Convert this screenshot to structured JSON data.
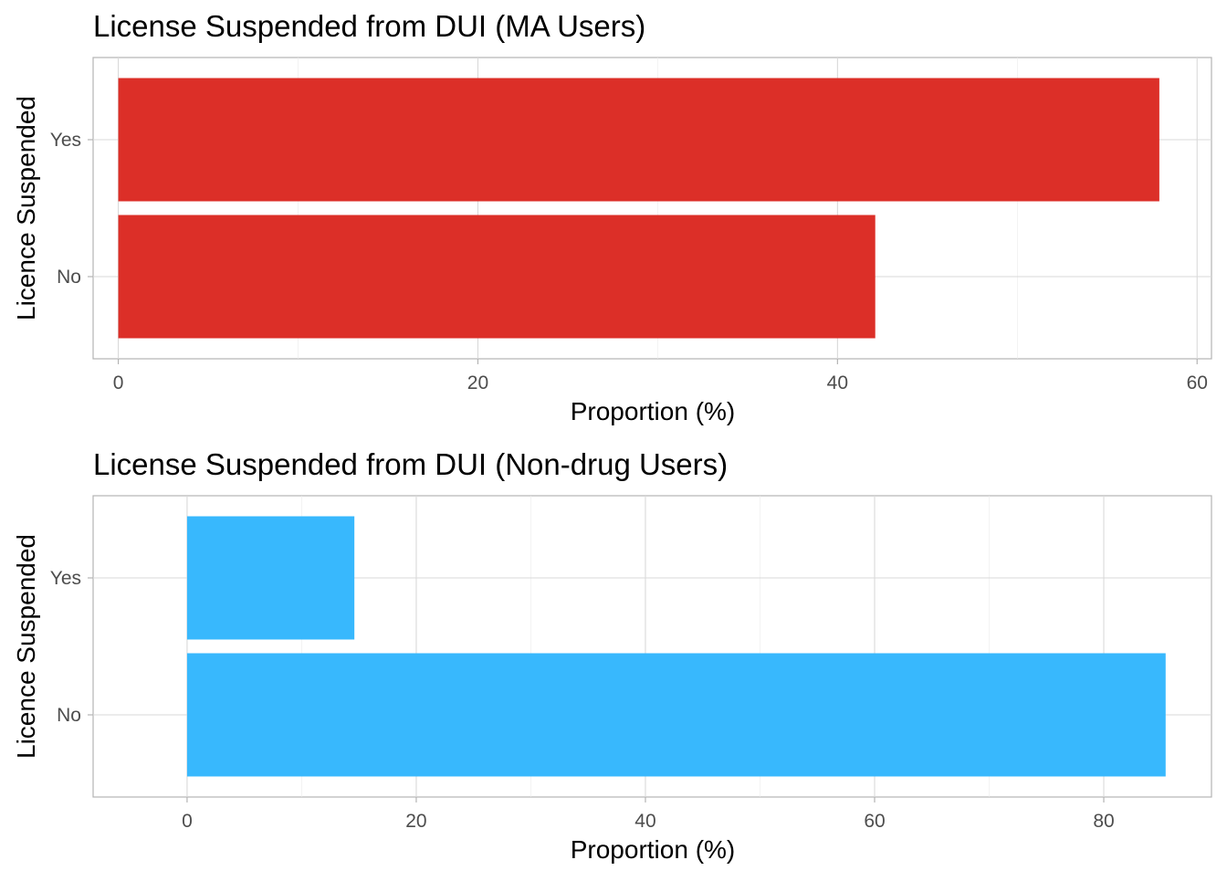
{
  "chart_data": [
    {
      "type": "bar",
      "orientation": "horizontal",
      "title": "License Suspended from DUI (MA Users)",
      "xlabel": "Proportion (%)",
      "ylabel": "Licence Suspended",
      "categories": [
        "No",
        "Yes"
      ],
      "values": [
        42.1,
        57.9
      ],
      "xlim": [
        -1.4,
        60.8
      ],
      "xticks": [
        0,
        20,
        40,
        60
      ],
      "color": "#DC2F28",
      "grid": true,
      "legend": "none"
    },
    {
      "type": "bar",
      "orientation": "horizontal",
      "title": "License Suspended from DUI (Non-drug Users)",
      "xlabel": "Proportion (%)",
      "ylabel": "Licence Suspended",
      "categories": [
        "No",
        "Yes"
      ],
      "values": [
        85.4,
        14.6
      ],
      "xlim": [
        -8.2,
        89.4
      ],
      "xticks": [
        0,
        20,
        40,
        60,
        80
      ],
      "color": "#38B8FD",
      "grid": true,
      "legend": "none"
    }
  ]
}
